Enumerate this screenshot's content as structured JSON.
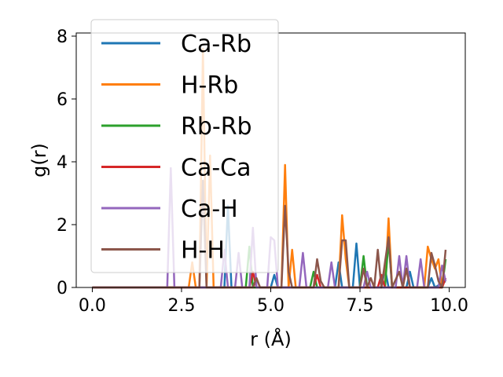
{
  "chart_data": {
    "type": "line",
    "xlabel": "r (Å)",
    "ylabel": "g(r)",
    "xlim": [
      -0.45,
      10.45
    ],
    "ylim": [
      0,
      8.1
    ],
    "xticks": [
      0.0,
      2.5,
      5.0,
      7.5,
      10.0
    ],
    "xtick_labels": [
      "0.0",
      "2.5",
      "5.0",
      "7.5",
      "10.0"
    ],
    "yticks": [
      0,
      2,
      4,
      6,
      8
    ],
    "ytick_labels": [
      "0",
      "2",
      "4",
      "6",
      "8"
    ],
    "grid": false,
    "legend_position": "top-left",
    "series": [
      {
        "name": "Ca-Rb",
        "color": "#1f77b4",
        "points": [
          [
            0,
            0
          ],
          [
            3.7,
            0
          ],
          [
            3.8,
            2.6
          ],
          [
            3.9,
            0
          ],
          [
            5.0,
            0
          ],
          [
            5.1,
            0.4
          ],
          [
            5.2,
            0
          ],
          [
            6.8,
            0
          ],
          [
            6.9,
            0.8
          ],
          [
            7.0,
            0
          ],
          [
            7.3,
            0
          ],
          [
            7.4,
            1.4
          ],
          [
            7.5,
            0
          ],
          [
            8.1,
            0
          ],
          [
            8.2,
            0.6
          ],
          [
            8.3,
            0
          ],
          [
            8.8,
            0
          ],
          [
            8.9,
            0.5
          ],
          [
            9.0,
            0
          ],
          [
            9.4,
            0
          ],
          [
            9.5,
            0.3
          ],
          [
            9.6,
            0
          ],
          [
            9.9,
            0.2
          ]
        ]
      },
      {
        "name": "H-Rb",
        "color": "#ff7f0e",
        "points": [
          [
            0,
            0
          ],
          [
            2.7,
            0
          ],
          [
            2.8,
            0.8
          ],
          [
            2.9,
            0
          ],
          [
            3.0,
            0
          ],
          [
            3.1,
            7.6
          ],
          [
            3.2,
            0
          ],
          [
            3.3,
            4.2
          ],
          [
            3.4,
            0
          ],
          [
            5.3,
            0
          ],
          [
            5.4,
            3.9
          ],
          [
            5.5,
            0
          ],
          [
            5.6,
            1.2
          ],
          [
            5.7,
            0
          ],
          [
            6.9,
            0
          ],
          [
            7.0,
            2.3
          ],
          [
            7.1,
            0.9
          ],
          [
            7.2,
            0
          ],
          [
            8.2,
            0
          ],
          [
            8.3,
            2.2
          ],
          [
            8.4,
            0
          ],
          [
            8.7,
            0
          ],
          [
            8.8,
            0.6
          ],
          [
            8.9,
            0
          ],
          [
            9.3,
            0
          ],
          [
            9.4,
            1.3
          ],
          [
            9.5,
            0.9
          ],
          [
            9.6,
            0.6
          ],
          [
            9.7,
            0.9
          ],
          [
            9.8,
            0
          ],
          [
            9.9,
            0.3
          ]
        ]
      },
      {
        "name": "Rb-Rb",
        "color": "#2ca02c",
        "points": [
          [
            0,
            0
          ],
          [
            4.3,
            0
          ],
          [
            4.4,
            1.3
          ],
          [
            4.5,
            0
          ],
          [
            6.1,
            0
          ],
          [
            6.2,
            0.5
          ],
          [
            6.3,
            0
          ],
          [
            7.5,
            0
          ],
          [
            7.6,
            1.0
          ],
          [
            7.7,
            0
          ],
          [
            8.2,
            0
          ],
          [
            8.3,
            1.5
          ],
          [
            8.4,
            0
          ],
          [
            9.8,
            0
          ],
          [
            9.9,
            0.9
          ]
        ]
      },
      {
        "name": "Ca-Ca",
        "color": "#d62728",
        "points": [
          [
            0,
            0
          ],
          [
            4.4,
            0
          ],
          [
            4.5,
            0.5
          ],
          [
            4.6,
            0
          ],
          [
            6.2,
            0
          ],
          [
            6.3,
            0.4
          ],
          [
            6.4,
            0
          ],
          [
            8.0,
            0
          ],
          [
            8.1,
            0.4
          ],
          [
            8.2,
            0
          ],
          [
            9.8,
            0
          ],
          [
            9.9,
            0.3
          ]
        ]
      },
      {
        "name": "Ca-H",
        "color": "#9467bd",
        "points": [
          [
            0,
            0
          ],
          [
            2.1,
            0
          ],
          [
            2.2,
            3.8
          ],
          [
            2.3,
            0
          ],
          [
            3.6,
            0
          ],
          [
            3.7,
            1.2
          ],
          [
            3.8,
            0
          ],
          [
            4.0,
            0
          ],
          [
            4.1,
            1.1
          ],
          [
            4.2,
            0
          ],
          [
            4.4,
            0
          ],
          [
            4.5,
            1.9
          ],
          [
            4.6,
            0
          ],
          [
            4.9,
            0
          ],
          [
            5.0,
            1.6
          ],
          [
            5.1,
            1.5
          ],
          [
            5.2,
            0
          ],
          [
            5.8,
            0
          ],
          [
            5.9,
            1.1
          ],
          [
            6.0,
            0
          ],
          [
            6.6,
            0
          ],
          [
            6.7,
            0.8
          ],
          [
            6.8,
            0
          ],
          [
            7.6,
            0
          ],
          [
            7.7,
            0.5
          ],
          [
            7.8,
            0
          ],
          [
            8.5,
            0
          ],
          [
            8.6,
            1.0
          ],
          [
            8.7,
            0
          ],
          [
            8.8,
            1.0
          ],
          [
            8.9,
            0
          ],
          [
            9.1,
            0
          ],
          [
            9.2,
            0.9
          ],
          [
            9.3,
            0
          ],
          [
            9.7,
            0
          ],
          [
            9.8,
            0.7
          ],
          [
            9.9,
            0.2
          ]
        ]
      },
      {
        "name": "H-H",
        "color": "#8c564b",
        "points": [
          [
            0,
            0
          ],
          [
            3.0,
            0
          ],
          [
            3.1,
            3.4
          ],
          [
            3.2,
            0
          ],
          [
            4.5,
            0
          ],
          [
            4.6,
            0.3
          ],
          [
            4.7,
            0
          ],
          [
            5.3,
            0
          ],
          [
            5.4,
            2.6
          ],
          [
            5.5,
            0.5
          ],
          [
            5.6,
            0
          ],
          [
            6.2,
            0
          ],
          [
            6.3,
            0.9
          ],
          [
            6.4,
            0.2
          ],
          [
            6.5,
            0
          ],
          [
            6.9,
            0
          ],
          [
            7.0,
            1.5
          ],
          [
            7.1,
            1.5
          ],
          [
            7.2,
            0
          ],
          [
            7.5,
            0
          ],
          [
            7.6,
            0.6
          ],
          [
            7.7,
            0
          ],
          [
            7.8,
            0.3
          ],
          [
            7.9,
            0
          ],
          [
            8.0,
            1.2
          ],
          [
            8.1,
            0
          ],
          [
            8.3,
            1.6
          ],
          [
            8.4,
            0
          ],
          [
            8.6,
            0.5
          ],
          [
            8.7,
            0
          ],
          [
            8.8,
            0.6
          ],
          [
            8.9,
            0
          ],
          [
            9.4,
            0
          ],
          [
            9.5,
            1.1
          ],
          [
            9.6,
            0.7
          ],
          [
            9.7,
            0.2
          ],
          [
            9.8,
            0
          ],
          [
            9.9,
            1.2
          ]
        ]
      }
    ]
  }
}
